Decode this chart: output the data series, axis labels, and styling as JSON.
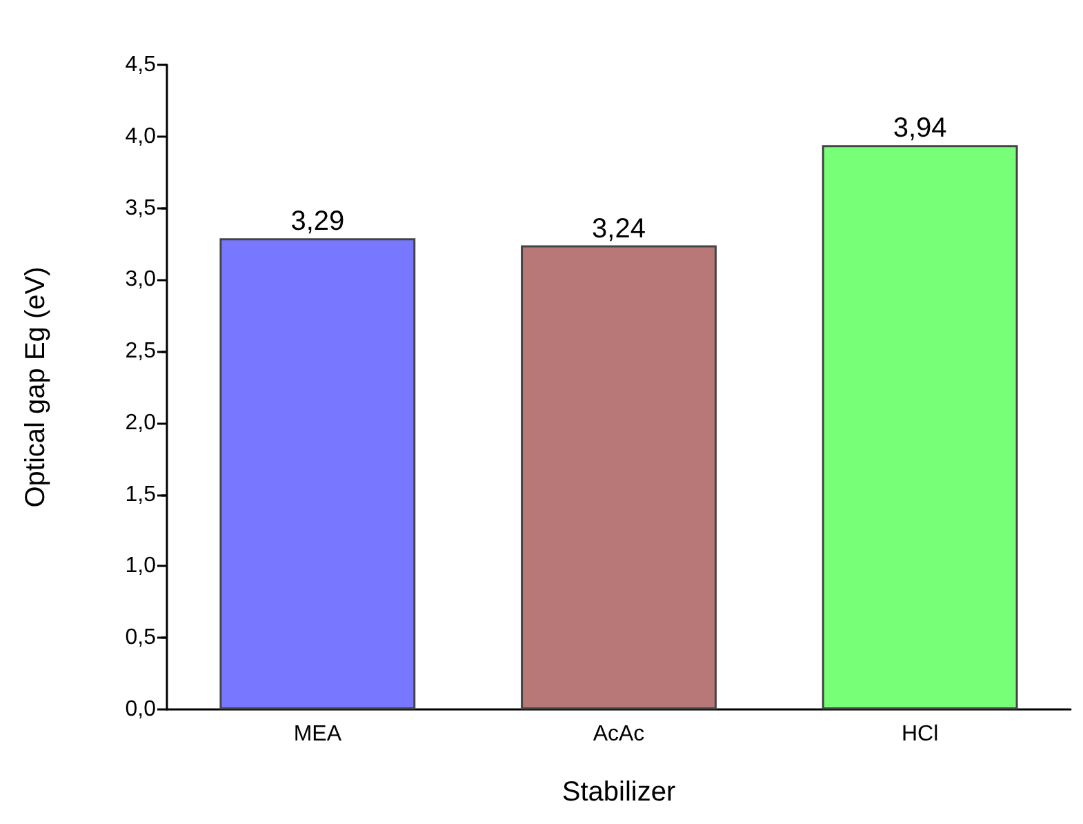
{
  "chart_data": {
    "type": "bar",
    "xlabel": "Stabilizer",
    "ylabel": "Optical gap Eg (eV)",
    "categories": [
      "MEA",
      "AcAc",
      "HCl"
    ],
    "values": [
      3.29,
      3.24,
      3.94
    ],
    "colors": [
      "#7777ff",
      "#b87878",
      "#77ff77"
    ],
    "value_labels": [
      "3,29",
      "3,24",
      "3,94"
    ],
    "ylim": [
      0,
      4.5
    ],
    "yticks": [
      {
        "value": 0,
        "label": "0,0"
      },
      {
        "value": 0.5,
        "label": "0,5"
      },
      {
        "value": 1,
        "label": "1,0"
      },
      {
        "value": 1.5,
        "label": "1,5"
      },
      {
        "value": 2,
        "label": "2,0"
      },
      {
        "value": 2.5,
        "label": "2,5"
      },
      {
        "value": 3,
        "label": "3,0"
      },
      {
        "value": 3.5,
        "label": "3,5"
      },
      {
        "value": 4,
        "label": "4,0"
      },
      {
        "value": 4.5,
        "label": "4,5"
      }
    ],
    "grid": false
  }
}
